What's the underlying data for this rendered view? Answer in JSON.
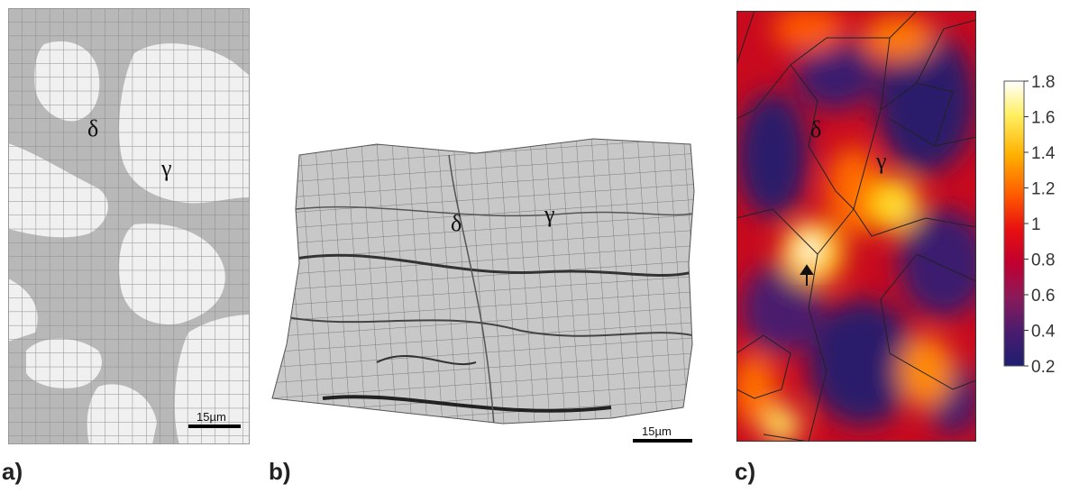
{
  "panels": {
    "a": {
      "label": "a)",
      "phase_delta": "δ",
      "phase_gamma": "γ",
      "scale_bar": "15µm"
    },
    "b": {
      "label": "b)",
      "phase_delta": "δ",
      "phase_gamma": "γ",
      "scale_bar": "15µm"
    },
    "c": {
      "label": "c)",
      "phase_delta": "δ",
      "phase_gamma": "γ",
      "colorbar": {
        "min": 0.2,
        "max": 1.8,
        "ticks": [
          "1.8",
          "1.6",
          "1.4",
          "1.2",
          "1",
          "0.8",
          "0.6",
          "0.4",
          "0.2"
        ],
        "colors": [
          "#ffffff",
          "#ffef60",
          "#ffb000",
          "#ff5a00",
          "#e81010",
          "#c00030",
          "#8a1a5a",
          "#4a1c6e",
          "#1e1e70"
        ]
      }
    }
  }
}
